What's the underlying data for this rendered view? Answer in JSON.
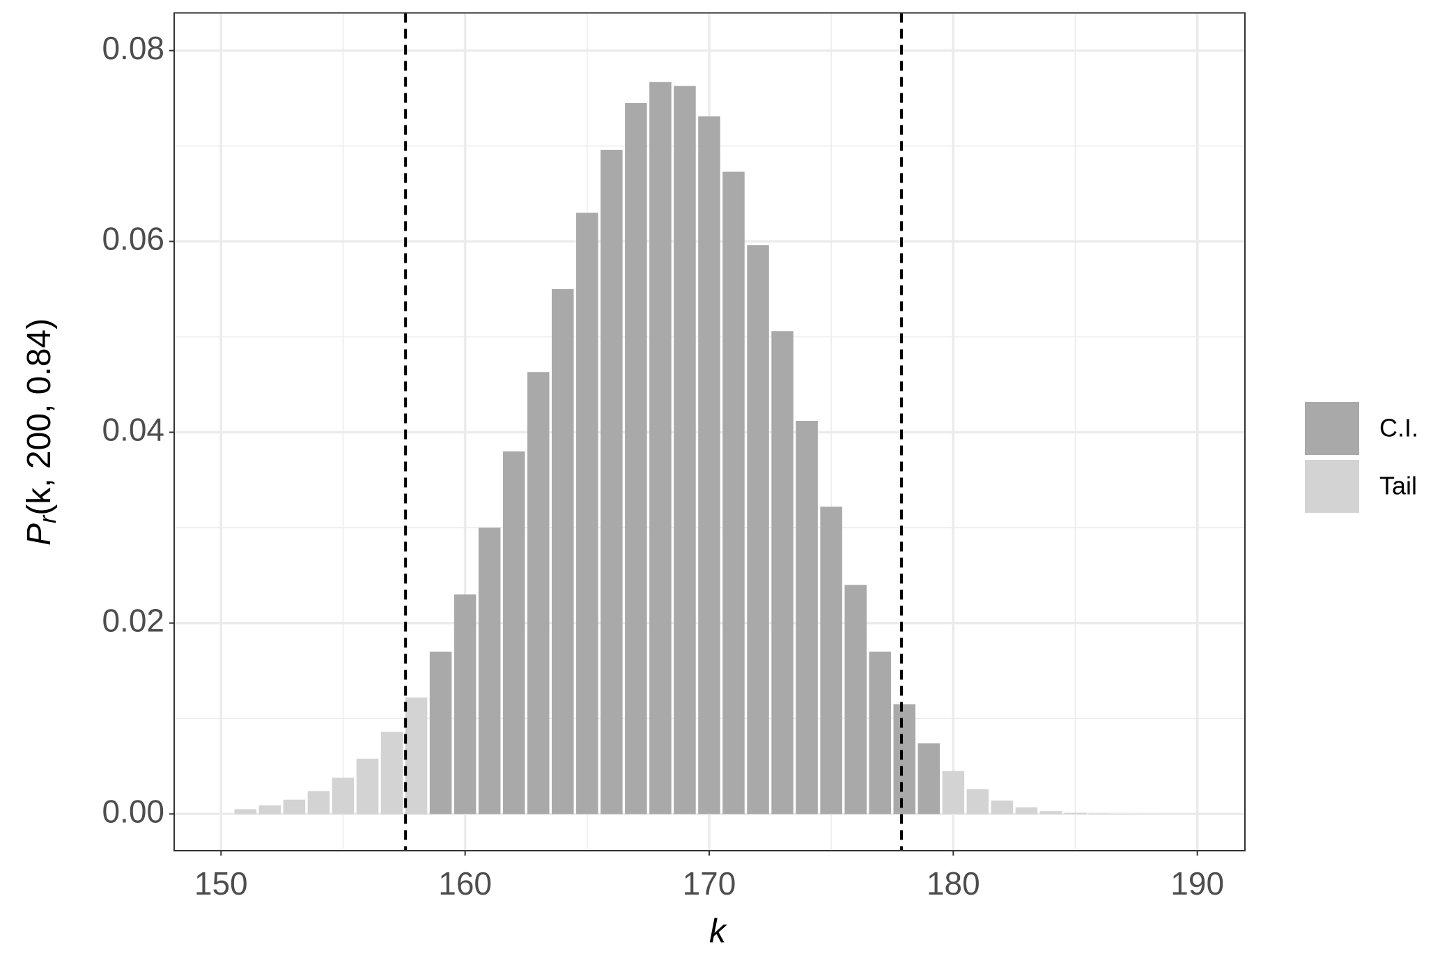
{
  "chart_data": {
    "type": "bar",
    "x": [
      151,
      152,
      153,
      154,
      155,
      156,
      157,
      158,
      159,
      160,
      161,
      162,
      163,
      164,
      165,
      166,
      167,
      168,
      169,
      170,
      171,
      172,
      173,
      174,
      175,
      176,
      177,
      178,
      179,
      180,
      181,
      182,
      183,
      184,
      185,
      186,
      187,
      188
    ],
    "series": [
      {
        "name": "C.I.",
        "color": "#a9a9a9",
        "values": [
          null,
          null,
          null,
          null,
          null,
          null,
          null,
          null,
          0.017,
          0.023,
          0.03,
          0.038,
          0.0463,
          0.055,
          0.063,
          0.0696,
          0.0745,
          0.0767,
          0.0763,
          0.0731,
          0.0673,
          0.0596,
          0.0506,
          0.0412,
          0.0322,
          0.024,
          0.017,
          0.0115,
          0.0074,
          null,
          null,
          null,
          null,
          null,
          null,
          null,
          null,
          null
        ]
      },
      {
        "name": "Tail",
        "color": "#d3d3d3",
        "values": [
          0.0005,
          0.0009,
          0.0015,
          0.0024,
          0.0038,
          0.0058,
          0.0086,
          0.0122,
          null,
          null,
          null,
          null,
          null,
          null,
          null,
          null,
          null,
          null,
          null,
          null,
          null,
          null,
          null,
          null,
          null,
          null,
          null,
          null,
          null,
          0.0045,
          0.0026,
          0.0014,
          0.0007,
          0.0003,
          0.00013,
          5e-05,
          2e-05,
          1e-05
        ]
      }
    ],
    "vlines": [
      157.56,
      177.88
    ],
    "xlabel": "k",
    "ylabel_main": "P",
    "ylabel_sub": "r",
    "ylabel_args": "(k, 200, 0.84)",
    "xlim": [
      148.08,
      191.95
    ],
    "ylim": [
      -0.00385,
      0.08395
    ],
    "xticks": [
      150,
      160,
      170,
      180,
      190
    ],
    "yticks": [
      {
        "value": 0,
        "label": "0.00"
      },
      {
        "value": 0.02,
        "label": "0.02"
      },
      {
        "value": 0.04,
        "label": "0.04"
      },
      {
        "value": 0.06,
        "label": "0.06"
      },
      {
        "value": 0.08,
        "label": "0.08"
      }
    ],
    "x_minor_ticks": [
      155,
      165,
      175,
      185
    ],
    "y_minor_ticks": [
      0.01,
      0.03,
      0.05,
      0.07
    ],
    "grid": true,
    "legend": "right"
  }
}
